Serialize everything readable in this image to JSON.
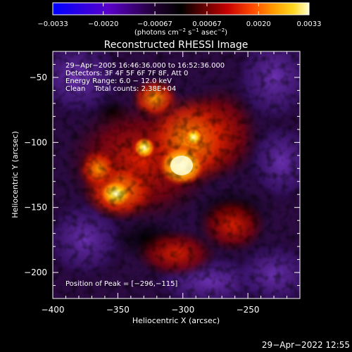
{
  "chart_data": {
    "type": "heatmap",
    "title": "Reconstructed RHESSI Image",
    "xlabel": "Heliocentric X (arcsec)",
    "ylabel": "Heliocentric Y (arcsec)",
    "xlim": [
      -400,
      -210
    ],
    "ylim": [
      -220,
      -30
    ],
    "xticks": [
      -400,
      -350,
      -300,
      -250
    ],
    "xtick_labels": [
      "−400",
      "−350",
      "−300",
      "−250"
    ],
    "yticks": [
      -50,
      -100,
      -150,
      -200
    ],
    "ytick_labels": [
      "−50",
      "−100",
      "−150",
      "−200"
    ],
    "colorbar": {
      "ticks": [
        -0.0033,
        -0.002,
        -0.00067,
        0.00067,
        0.002,
        0.0033
      ],
      "tick_labels": [
        "−0.0033",
        "−0.0020",
        "−0.00067",
        "0.00067",
        "0.0020",
        "0.0033"
      ],
      "unit_label": {
        "part1": "(photons cm",
        "sup1": "−2",
        "part2": " s",
        "sup2": "−1",
        "part3": " asec",
        "sup3": "−2",
        "part4": ")"
      },
      "colormap": [
        "#0000ff",
        "#5a00c8",
        "#200030",
        "#000000",
        "#5a0000",
        "#c40000",
        "#ff4a00",
        "#ff9a00",
        "#ffd820",
        "#ffffd0"
      ]
    },
    "annotations": {
      "line1": "29−Apr−2005 16:46:36.000 to 16:52:36.000",
      "line2": "Detectors: 3F 4F 5F 6F 7F 8F, Att 0",
      "line3": "Energy Range: 6.0 − 12.0 keV",
      "line4": "Clean    Total counts: 2.38E+04",
      "peak": "Position of Peak = [−296,−115]"
    },
    "peak_position": [
      -296,
      -115
    ],
    "value_range": [
      -0.0033,
      0.0033
    ]
  },
  "footer": {
    "timestamp": "29−Apr−2022 12:55"
  }
}
